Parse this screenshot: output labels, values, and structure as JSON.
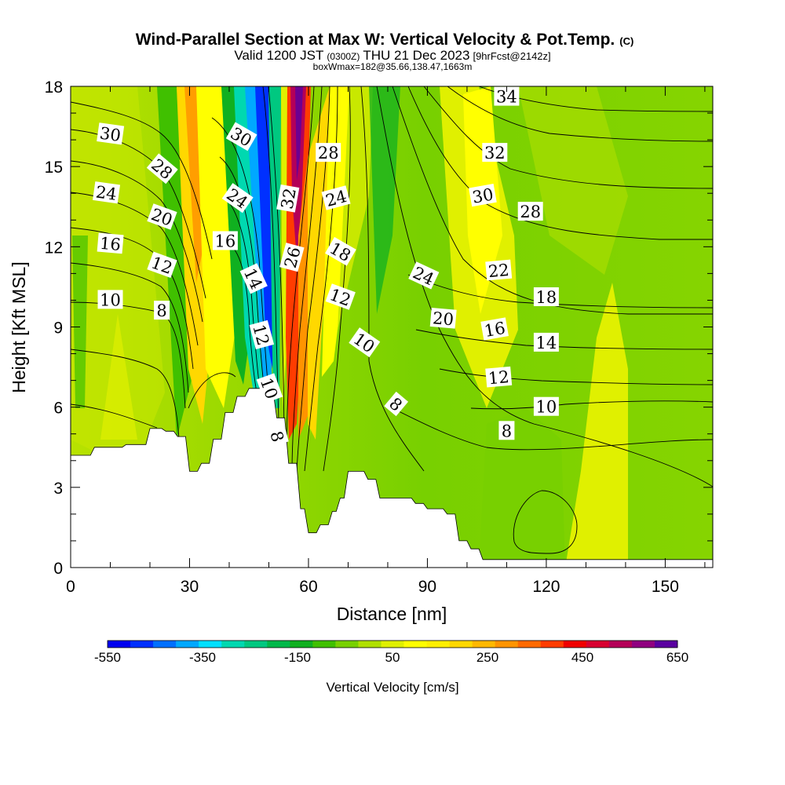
{
  "title": "Wind-Parallel Section at Max W: Vertical Velocity & Pot.Temp.",
  "title_units": "(C)",
  "subtitle": {
    "valid": "Valid 1200 JST",
    "utc": "(0300Z)",
    "date": "THU 21 Dec 2023",
    "fcst": "[9hrFcst@2142z]"
  },
  "info": "boxWmax=182@35.66,138.47,1663m",
  "chart_data": {
    "type": "heatmap",
    "xlabel": "Distance [nm]",
    "ylabel": "Height [Kft MSL]",
    "xlim": [
      0,
      162
    ],
    "ylim": [
      0,
      18
    ],
    "xticks": [
      "0",
      "30",
      "60",
      "90",
      "120",
      "150"
    ],
    "yticks": [
      "0",
      "3",
      "6",
      "9",
      "12",
      "15",
      "18"
    ],
    "colorbar": {
      "label": "Vertical Velocity [cm/s]",
      "tick_labels": [
        "-550",
        "-350",
        "-150",
        "50",
        "250",
        "450",
        "650"
      ],
      "colors": [
        "#0000f0",
        "#0030ff",
        "#0070ff",
        "#00a8ff",
        "#00e0ff",
        "#00d8b0",
        "#00c880",
        "#00b84a",
        "#10b020",
        "#40c000",
        "#78d000",
        "#b0e000",
        "#e0f000",
        "#ffff00",
        "#fff000",
        "#ffd800",
        "#ffb800",
        "#ff9400",
        "#ff6a00",
        "#ff3c00",
        "#f00000",
        "#d80030",
        "#b40058",
        "#900080",
        "#5a00a0"
      ]
    },
    "terrain_kft": [
      [
        0,
        4.2
      ],
      [
        1,
        4.2
      ],
      [
        1,
        4.2
      ],
      [
        5,
        4.2
      ],
      [
        6,
        4.5
      ],
      [
        13,
        4.5
      ],
      [
        14,
        4.6
      ],
      [
        19,
        4.6
      ],
      [
        20,
        5.2
      ],
      [
        23,
        5.2
      ],
      [
        24,
        5.1
      ],
      [
        26,
        5.1
      ],
      [
        27,
        4.9
      ],
      [
        29,
        4.9
      ],
      [
        30,
        3.6
      ],
      [
        32,
        3.6
      ],
      [
        33,
        3.9
      ],
      [
        35,
        3.9
      ],
      [
        36,
        4.8
      ],
      [
        38,
        4.8
      ],
      [
        39,
        5.8
      ],
      [
        41,
        5.8
      ],
      [
        42,
        6.4
      ],
      [
        44,
        6.4
      ],
      [
        45,
        6.7
      ],
      [
        51,
        6.7
      ],
      [
        52,
        5.6
      ],
      [
        54,
        5.6
      ],
      [
        55,
        3.9
      ],
      [
        57,
        3.9
      ],
      [
        58,
        2.2
      ],
      [
        59,
        2.2
      ],
      [
        60,
        1.3
      ],
      [
        62,
        1.3
      ],
      [
        63,
        1.6
      ],
      [
        65,
        1.6
      ],
      [
        66,
        2.1
      ],
      [
        67,
        2.1
      ],
      [
        68,
        2.6
      ],
      [
        69,
        2.6
      ],
      [
        70,
        3.6
      ],
      [
        74,
        3.6
      ],
      [
        75,
        3.3
      ],
      [
        77,
        3.3
      ],
      [
        78,
        2.6
      ],
      [
        86,
        2.6
      ],
      [
        87,
        2.4
      ],
      [
        89,
        2.4
      ],
      [
        90,
        2.2
      ],
      [
        94,
        2.2
      ],
      [
        95,
        2.0
      ],
      [
        97,
        2.0
      ],
      [
        98,
        1.0
      ],
      [
        100,
        1.0
      ],
      [
        101,
        0.7
      ],
      [
        103,
        0.7
      ],
      [
        104,
        0.3
      ],
      [
        162,
        0.3
      ]
    ],
    "contour_labels": [
      {
        "text": "30",
        "x": 10,
        "y": 16.2,
        "rot": 8
      },
      {
        "text": "28",
        "x": 23,
        "y": 14.9,
        "rot": 40
      },
      {
        "text": "24",
        "x": 9,
        "y": 14.0,
        "rot": 8
      },
      {
        "text": "20",
        "x": 23,
        "y": 13.1,
        "rot": 20
      },
      {
        "text": "16",
        "x": 10,
        "y": 12.1,
        "rot": 5
      },
      {
        "text": "12",
        "x": 23,
        "y": 11.3,
        "rot": 20
      },
      {
        "text": "10",
        "x": 10,
        "y": 10.0,
        "rot": 0
      },
      {
        "text": "8",
        "x": 23,
        "y": 9.6,
        "rot": 0
      },
      {
        "text": "30",
        "x": 43,
        "y": 16.1,
        "rot": 30
      },
      {
        "text": "24",
        "x": 42,
        "y": 13.8,
        "rot": 35
      },
      {
        "text": "16",
        "x": 39,
        "y": 12.2,
        "rot": 0
      },
      {
        "text": "14",
        "x": 46,
        "y": 10.8,
        "rot": 65
      },
      {
        "text": "12",
        "x": 48,
        "y": 8.7,
        "rot": 75
      },
      {
        "text": "10",
        "x": 50,
        "y": 6.7,
        "rot": 70
      },
      {
        "text": "8",
        "x": 52,
        "y": 4.9,
        "rot": 75
      },
      {
        "text": "32",
        "x": 55,
        "y": 13.8,
        "rot": -80
      },
      {
        "text": "26",
        "x": 56,
        "y": 11.6,
        "rot": -75
      },
      {
        "text": "28",
        "x": 65,
        "y": 15.5,
        "rot": 0
      },
      {
        "text": "24",
        "x": 67,
        "y": 13.8,
        "rot": -15
      },
      {
        "text": "18",
        "x": 68,
        "y": 11.8,
        "rot": 30
      },
      {
        "text": "12",
        "x": 68,
        "y": 10.1,
        "rot": 20
      },
      {
        "text": "10",
        "x": 74,
        "y": 8.4,
        "rot": 35
      },
      {
        "text": "8",
        "x": 82,
        "y": 6.1,
        "rot": 40
      },
      {
        "text": "24",
        "x": 89,
        "y": 10.9,
        "rot": 25
      },
      {
        "text": "20",
        "x": 94,
        "y": 9.3,
        "rot": 5
      },
      {
        "text": "34",
        "x": 110,
        "y": 17.6,
        "rot": 0
      },
      {
        "text": "32",
        "x": 107,
        "y": 15.5,
        "rot": 0
      },
      {
        "text": "30",
        "x": 104,
        "y": 13.9,
        "rot": -10
      },
      {
        "text": "28",
        "x": 116,
        "y": 13.3,
        "rot": 0
      },
      {
        "text": "22",
        "x": 108,
        "y": 11.1,
        "rot": -5
      },
      {
        "text": "18",
        "x": 120,
        "y": 10.1,
        "rot": 0
      },
      {
        "text": "16",
        "x": 107,
        "y": 8.9,
        "rot": -10
      },
      {
        "text": "14",
        "x": 120,
        "y": 8.4,
        "rot": 0
      },
      {
        "text": "12",
        "x": 108,
        "y": 7.1,
        "rot": -5
      },
      {
        "text": "10",
        "x": 120,
        "y": 6.0,
        "rot": 0
      },
      {
        "text": "8",
        "x": 110,
        "y": 5.1,
        "rot": 0
      }
    ]
  }
}
